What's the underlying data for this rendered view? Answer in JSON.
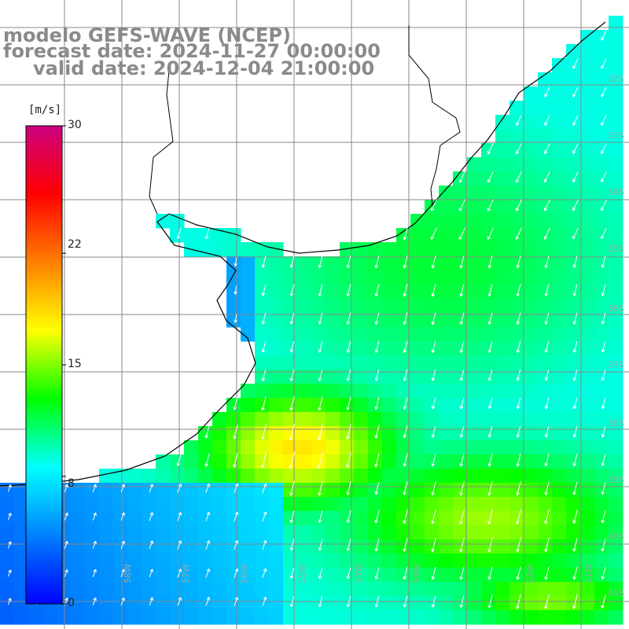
{
  "titles": {
    "model": "modelo GEFS-WAVE (NCEP)",
    "forecast": "forecast date: 2024-11-27 00:00:00",
    "valid": "valid date: 2024-12-04 21:00:00"
  },
  "colorbar": {
    "unit": "[m/s]",
    "min": 0,
    "max": 30,
    "ticks": [
      "30",
      "22",
      "15",
      "8",
      "0"
    ],
    "tick_values": [
      30,
      22,
      15,
      8,
      0
    ],
    "colors": [
      "#0000ff",
      "#0080ff",
      "#00ffff",
      "#00ff00",
      "#ffff00",
      "#ff8000",
      "#ff0000",
      "#cc0080"
    ]
  },
  "map": {
    "region": "South Atlantic off southern Brazil / Uruguay / Argentina",
    "lat_labels": [
      "32S",
      "33S",
      "34S",
      "35S",
      "36S",
      "37S",
      "38S",
      "39S",
      "40S",
      "41S"
    ],
    "lon_labels": [
      "58W",
      "57W",
      "56W",
      "55W",
      "54W",
      "53W",
      "52W",
      "51W"
    ],
    "land_color": "#ffffff",
    "coast_color": "#000000",
    "grid_color": "#888888",
    "arrow_color": "#ffffff",
    "wind_description": "Wind field: northerly/northeasterly winds over the eastern sea, strongest (yellow-orange, ~15-20 m/s) off the Rio de la Plata mouth; weak southwesterly winds (blue, ~4-8 m/s) in the southwest corner."
  }
}
